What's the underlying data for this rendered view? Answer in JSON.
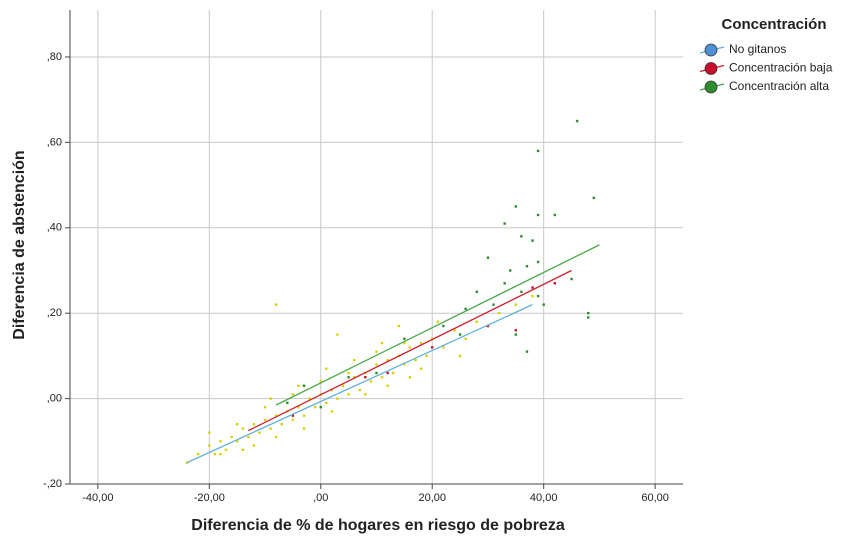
{
  "chart_data": {
    "type": "scatter",
    "x_label": "Diferencia de % de hogares en riesgo de pobreza",
    "y_label": "Diferencia de abstención",
    "legend_title": "Concentración",
    "legend": "right",
    "grid": true,
    "xlim": [
      -45,
      65
    ],
    "ylim": [
      -0.2,
      0.91
    ],
    "xticks": [
      {
        "value": -40,
        "label": "-40,00"
      },
      {
        "value": -20,
        "label": "-20,00"
      },
      {
        "value": 0,
        "label": ",00"
      },
      {
        "value": 20,
        "label": "20,00"
      },
      {
        "value": 40,
        "label": "40,00"
      },
      {
        "value": 60,
        "label": "60,00"
      }
    ],
    "yticks": [
      {
        "value": -0.2,
        "label": "-,20"
      },
      {
        "value": 0,
        "label": ",00"
      },
      {
        "value": 0.2,
        "label": ",20"
      },
      {
        "value": 0.4,
        "label": ",40"
      },
      {
        "value": 0.6,
        "label": ",60"
      },
      {
        "value": 0.8,
        "label": ",80"
      }
    ],
    "series": [
      {
        "name": "No gitanos",
        "color": "#4f8fd6",
        "point_color": "#d8d200",
        "line_color": "#62b0dc",
        "x": [
          -24,
          -22,
          -20,
          -19,
          -18,
          -17,
          -16,
          -15,
          -14,
          -13,
          -12,
          -11,
          -10,
          -9,
          -8,
          -7,
          -6,
          -5,
          -4,
          -3,
          -2,
          -1,
          0,
          1,
          2,
          3,
          4,
          5,
          6,
          7,
          8,
          9,
          10,
          11,
          12,
          13,
          14,
          15,
          16,
          17,
          18,
          19,
          20,
          22,
          24,
          26,
          28,
          30,
          32,
          35,
          38,
          -20,
          -18,
          -15,
          -12,
          -10,
          -8,
          -5,
          -3,
          0,
          2,
          5,
          8,
          10,
          12,
          15,
          18,
          -14,
          -9,
          -4,
          1,
          6,
          11,
          16,
          21,
          -8,
          3,
          14,
          25
        ],
        "y": [
          -0.15,
          -0.13,
          -0.11,
          -0.13,
          -0.1,
          -0.12,
          -0.09,
          -0.1,
          -0.07,
          -0.09,
          -0.06,
          -0.08,
          -0.05,
          -0.07,
          -0.04,
          -0.06,
          -0.03,
          -0.05,
          -0.02,
          -0.04,
          0.0,
          -0.02,
          0.01,
          -0.01,
          0.02,
          0.0,
          0.03,
          0.01,
          0.05,
          0.02,
          0.06,
          0.04,
          0.08,
          0.05,
          0.09,
          0.06,
          0.1,
          0.08,
          0.12,
          0.09,
          0.13,
          0.1,
          0.14,
          0.12,
          0.16,
          0.14,
          0.18,
          0.17,
          0.2,
          0.22,
          0.24,
          -0.08,
          -0.13,
          -0.06,
          -0.11,
          -0.02,
          -0.09,
          0.01,
          -0.07,
          0.04,
          -0.03,
          0.06,
          0.01,
          0.11,
          0.03,
          0.13,
          0.07,
          -0.12,
          0.0,
          0.03,
          0.07,
          0.09,
          0.13,
          0.05,
          0.18,
          0.22,
          0.15,
          0.17,
          0.1
        ],
        "fit_x": [
          -24,
          38
        ],
        "fit_y": [
          -0.15,
          0.22
        ]
      },
      {
        "name": "Concentración baja",
        "color": "#c8102e",
        "point_color": "#c8102e",
        "line_color": "#d0202e",
        "x": [
          20,
          30,
          38,
          12,
          -5,
          42,
          35,
          8
        ],
        "y": [
          0.12,
          0.17,
          0.26,
          0.06,
          -0.04,
          0.27,
          0.16,
          0.05
        ],
        "fit_x": [
          -13,
          45
        ],
        "fit_y": [
          -0.075,
          0.3
        ]
      },
      {
        "name": "Concentración alta",
        "color": "#2e8b2e",
        "point_color": "#2e8b2e",
        "line_color": "#4aa84a",
        "x": [
          46,
          39,
          49,
          35,
          39,
          42,
          33,
          36,
          38,
          30,
          34,
          37,
          39,
          45,
          33,
          36,
          28,
          39,
          26,
          40,
          48,
          48,
          35,
          37,
          22,
          15,
          10,
          5,
          -6,
          -3,
          0,
          25,
          31
        ],
        "y": [
          0.65,
          0.58,
          0.47,
          0.45,
          0.43,
          0.43,
          0.41,
          0.38,
          0.37,
          0.33,
          0.3,
          0.31,
          0.32,
          0.28,
          0.27,
          0.25,
          0.25,
          0.24,
          0.21,
          0.22,
          0.2,
          0.19,
          0.15,
          0.11,
          0.17,
          0.14,
          0.06,
          0.05,
          -0.01,
          0.03,
          -0.02,
          0.15,
          0.22
        ],
        "fit_x": [
          -8,
          50
        ],
        "fit_y": [
          -0.015,
          0.36
        ]
      }
    ]
  }
}
